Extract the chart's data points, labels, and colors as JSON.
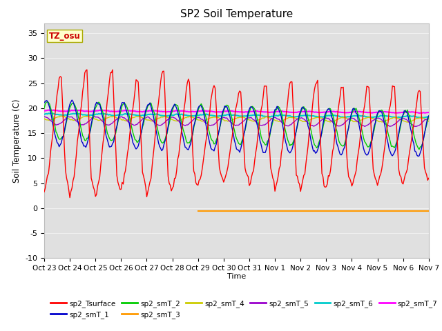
{
  "title": "SP2 Soil Temperature",
  "xlabel": "Time",
  "ylabel": "Soil Temperature (C)",
  "ylim": [
    -10,
    37
  ],
  "background_color": "#ffffff",
  "plot_bg_color": "#e0e0e0",
  "tz_label": "TZ_osu",
  "tz_box_color": "#ffffcc",
  "tz_text_color": "#cc0000",
  "tz_border_color": "#aaaa00",
  "grid_color": "#f0f0f0",
  "series_colors": {
    "sp2_Tsurface": "#ff0000",
    "sp2_smT_1": "#0000cc",
    "sp2_smT_2": "#00cc00",
    "sp2_smT_3": "#ff9900",
    "sp2_smT_4": "#cccc00",
    "sp2_smT_5": "#9900cc",
    "sp2_smT_6": "#00cccc",
    "sp2_smT_7": "#ff00ff"
  },
  "xtick_labels": [
    "Oct 23",
    "Oct 24",
    "Oct 25",
    "Oct 26",
    "Oct 27",
    "Oct 28",
    "Oct 29",
    "Oct 30",
    "Oct 31",
    "Nov 1",
    "Nov 2",
    "Nov 3",
    "Nov 4",
    "Nov 5",
    "Nov 6",
    "Nov 7"
  ],
  "xtick_positions": [
    0,
    24,
    48,
    72,
    96,
    120,
    144,
    168,
    192,
    216,
    240,
    264,
    288,
    312,
    336,
    360
  ],
  "ytick_labels": [
    "-10",
    "-5",
    "0",
    "5",
    "10",
    "15",
    "20",
    "25",
    "30",
    "35"
  ],
  "ytick_values": [
    -10,
    -5,
    0,
    5,
    10,
    15,
    20,
    25,
    30,
    35
  ],
  "figsize": [
    6.4,
    4.8
  ],
  "dpi": 100
}
